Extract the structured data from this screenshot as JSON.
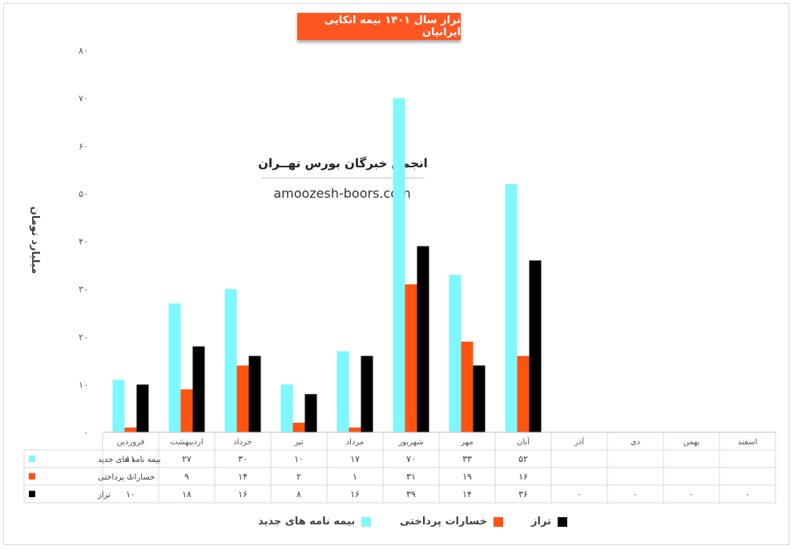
{
  "chart_data": {
    "type": "bar",
    "title": "تراز سال ۱۴۰۱ بیمه اتکایی ایرانیان",
    "ylabel": "میلیارد تومان",
    "xlabel": "",
    "ylim": [
      0,
      80
    ],
    "yticks": [
      "۰",
      "۱۰",
      "۲۰",
      "۳۰",
      "۴۰",
      "۵۰",
      "۶۰",
      "۷۰",
      "۸۰"
    ],
    "categories": [
      "فروردین",
      "اردیبهشت",
      "خرداد",
      "تیر",
      "مرداد",
      "شهریور",
      "مهر",
      "آبان",
      "آذر",
      "دی",
      "بهمن",
      "اسفند"
    ],
    "series": [
      {
        "name": "بیمه نامه های جدید",
        "color": "#7ff7ff",
        "values": [
          11,
          27,
          30,
          10,
          17,
          70,
          33,
          52,
          null,
          null,
          null,
          null
        ],
        "table_labels": [
          "۱۱",
          "۲۷",
          "۳۰",
          "۱۰",
          "۱۷",
          "۷۰",
          "۳۳",
          "۵۲",
          "",
          "",
          "",
          ""
        ]
      },
      {
        "name": "خسارات پرداختی",
        "color": "#ff5310",
        "values": [
          1,
          9,
          14,
          2,
          1,
          31,
          19,
          16,
          null,
          null,
          null,
          null
        ],
        "table_labels": [
          "۱",
          "۹",
          "۱۴",
          "۲",
          "۱",
          "۳۱",
          "۱۹",
          "۱۶",
          "",
          "",
          "",
          ""
        ]
      },
      {
        "name": "تراز",
        "color": "#000000",
        "values": [
          10,
          18,
          16,
          8,
          16,
          39,
          14,
          36,
          0,
          0,
          0,
          0
        ],
        "table_labels": [
          "۱۰",
          "۱۸",
          "۱۶",
          "۸",
          "۱۶",
          "۳۹",
          "۱۴",
          "۳۶",
          "۰",
          "۰",
          "۰",
          "۰"
        ]
      }
    ],
    "grid": false,
    "legend_position": "bottom",
    "data_table": true
  },
  "watermark": {
    "org": "انجمن خبرگان بورس تهــران",
    "site": "amoozesh-boors.com"
  }
}
